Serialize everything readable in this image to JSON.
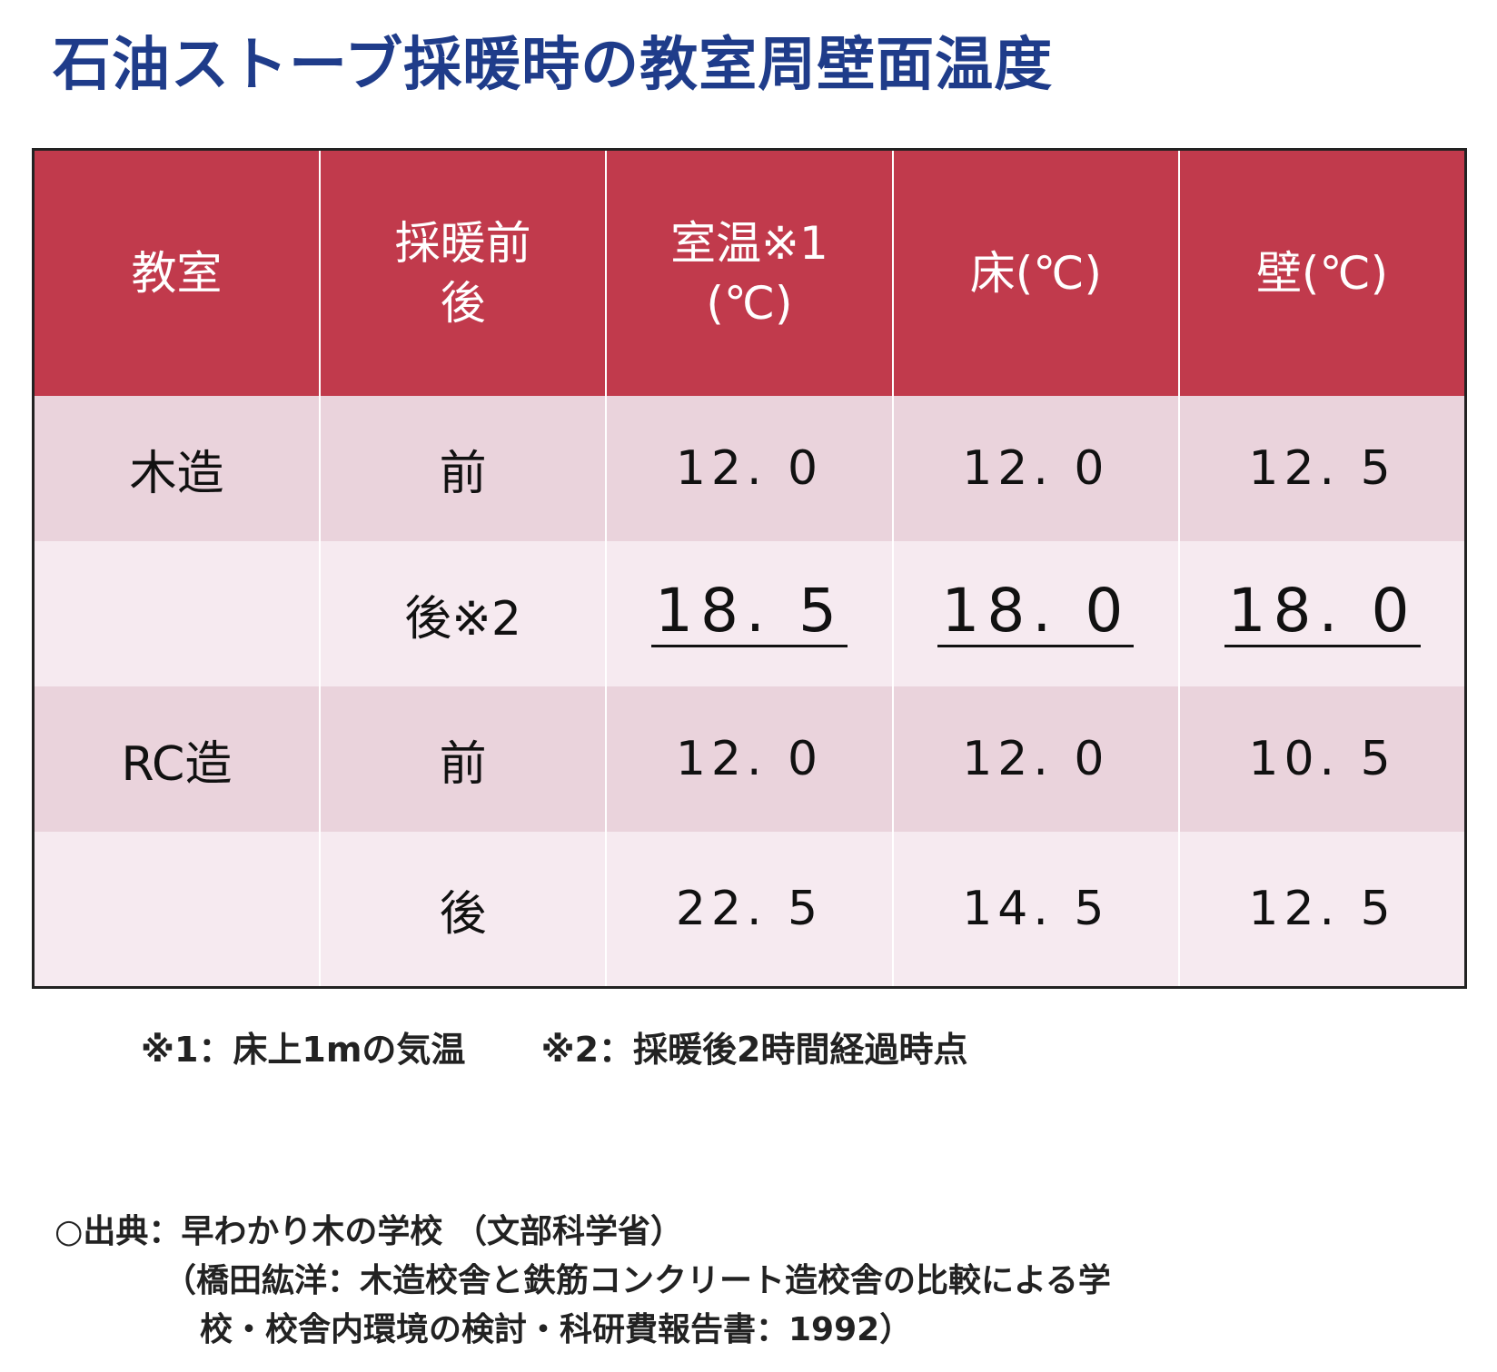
{
  "title": "石油ストーブ採暖時の教室周壁面温度",
  "table": {
    "headers": [
      "教室",
      "採暖前",
      "後",
      "室温※1",
      "(℃)",
      "床(℃)",
      "壁(℃)"
    ],
    "rows": [
      {
        "room": "木造",
        "phase": "前",
        "room_temp": "12. 0",
        "floor": "12. 0",
        "wall": "12. 5"
      },
      {
        "room": "",
        "phase": "後※2",
        "room_temp": "18. 5",
        "floor": "18. 0",
        "wall": "18. 0"
      },
      {
        "room": "RC造",
        "phase": "前",
        "room_temp": "12. 0",
        "floor": "12. 0",
        "wall": "10. 5"
      },
      {
        "room": "",
        "phase": "後",
        "room_temp": "22. 5",
        "floor": "14. 5",
        "wall": "12. 5"
      }
    ]
  },
  "notes": [
    "※1：床上1mの気温",
    "※2：採暖後2時間経過時点"
  ],
  "source": {
    "line1": "○出典：早わかり木の学校 （文部科学省）",
    "line2": "（橋田紘洋：木造校舎と鉄筋コンクリート造校舎の比較による学",
    "line3": "校・校舎内環境の検討・科研費報告書：1992）"
  }
}
